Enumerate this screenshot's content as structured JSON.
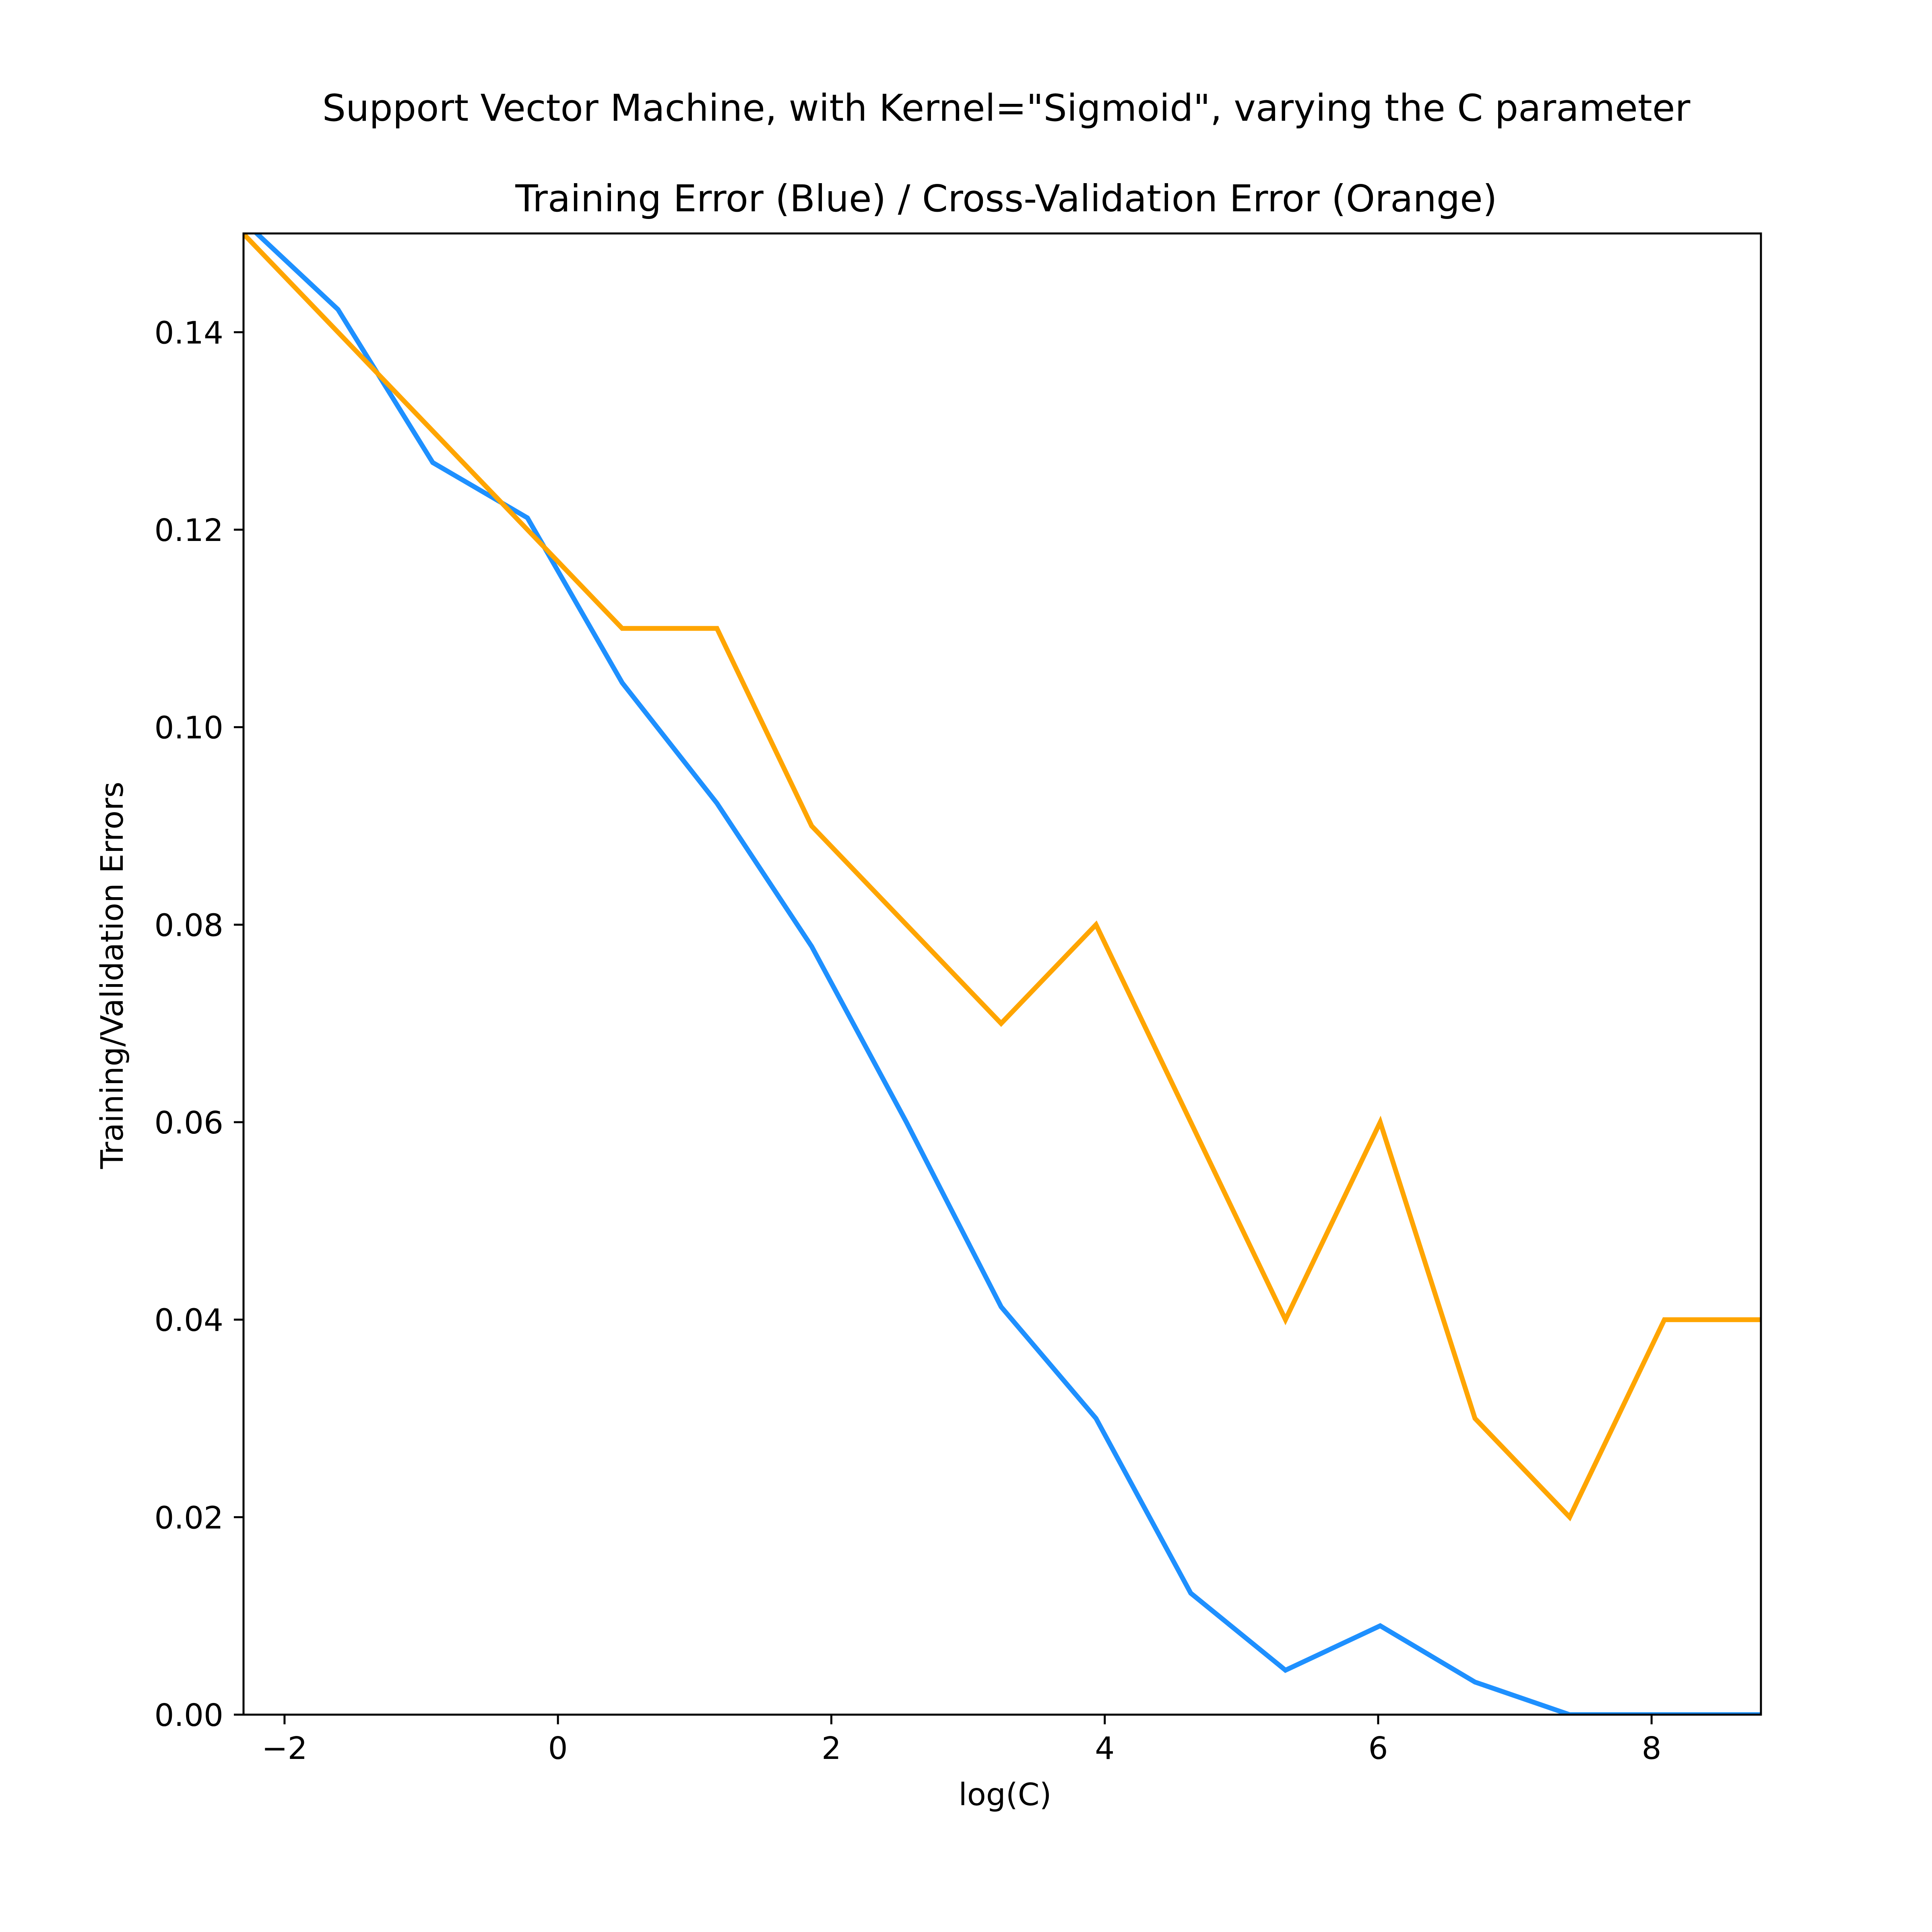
{
  "chart_data": {
    "type": "line",
    "title": "Support Vector Machine, with Kernel=\"Sigmoid\", varying the C parameter",
    "subtitle": "Training Error (Blue) / Cross-Validation Error (Orange)",
    "xlabel": "log(C)",
    "ylabel": "Training/Validation Errors",
    "xlim": [
      -2.3,
      8.8
    ],
    "ylim": [
      0.0,
      0.15
    ],
    "xticks": [
      -2,
      0,
      2,
      4,
      6,
      8
    ],
    "xtick_labels": [
      "−2",
      "0",
      "2",
      "4",
      "6",
      "8"
    ],
    "yticks": [
      0.0,
      0.02,
      0.04,
      0.06,
      0.08,
      0.1,
      0.12,
      0.14
    ],
    "ytick_labels": [
      "0.00",
      "0.02",
      "0.04",
      "0.06",
      "0.08",
      "0.10",
      "0.12",
      "0.14"
    ],
    "grid": false,
    "series": [
      {
        "color": "#1e90ff",
        "x": [
          -2.303,
          -1.609,
          -0.916,
          -0.223,
          0.47,
          1.163,
          1.856,
          2.549,
          3.242,
          3.936,
          4.629,
          5.322,
          6.015,
          6.708,
          7.401,
          8.094,
          8.8
        ],
        "values": [
          0.1513,
          0.1423,
          0.1268,
          0.1212,
          0.1045,
          0.0923,
          0.0778,
          0.06,
          0.0413,
          0.03,
          0.0123,
          0.0045,
          0.009,
          0.0033,
          0.0,
          0.0,
          0.0
        ]
      },
      {
        "color": "#ffa500",
        "x": [
          -2.303,
          -1.609,
          -0.916,
          -0.223,
          0.47,
          1.163,
          1.856,
          2.549,
          3.242,
          3.936,
          4.629,
          5.322,
          6.015,
          6.708,
          7.401,
          8.094,
          8.8
        ],
        "values": [
          0.15,
          0.14,
          0.13,
          0.12,
          0.11,
          0.11,
          0.09,
          0.08,
          0.07,
          0.08,
          0.06,
          0.04,
          0.06,
          0.03,
          0.02,
          0.04,
          0.04
        ]
      }
    ]
  }
}
